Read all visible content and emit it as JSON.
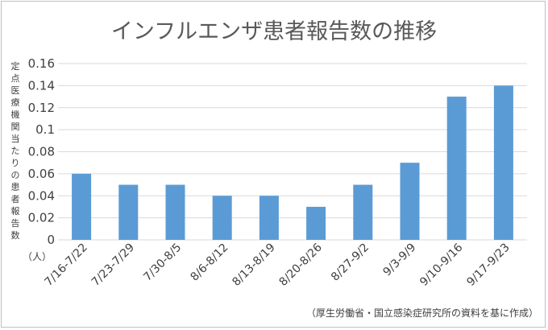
{
  "chart_data": {
    "type": "bar",
    "title": "インフルエンザ患者報告数の推移",
    "ylabel": "定点医療機関当たりの患者報告数",
    "yunit": "（人）",
    "source": "（厚生労働省・国立感染症研究所の資料を基に作成）",
    "categories": [
      "7/16-7/22",
      "7/23-7/29",
      "7/30-8/5",
      "8/6-8/12",
      "8/13-8/19",
      "8/20-8/26",
      "8/27-9/2",
      "9/3-9/9",
      "9/10-9/16",
      "9/17-9/23"
    ],
    "values": [
      0.06,
      0.05,
      0.05,
      0.04,
      0.04,
      0.03,
      0.05,
      0.07,
      0.13,
      0.14
    ],
    "ylim": [
      0,
      0.16
    ],
    "yticks": [
      "0",
      "0.02",
      "0.04",
      "0.06",
      "0.08",
      "0.1",
      "0.12",
      "0.14",
      "0.16"
    ],
    "grid": true,
    "bar_color": "#5B9BD5",
    "grid_color": "#D9D9D9"
  }
}
